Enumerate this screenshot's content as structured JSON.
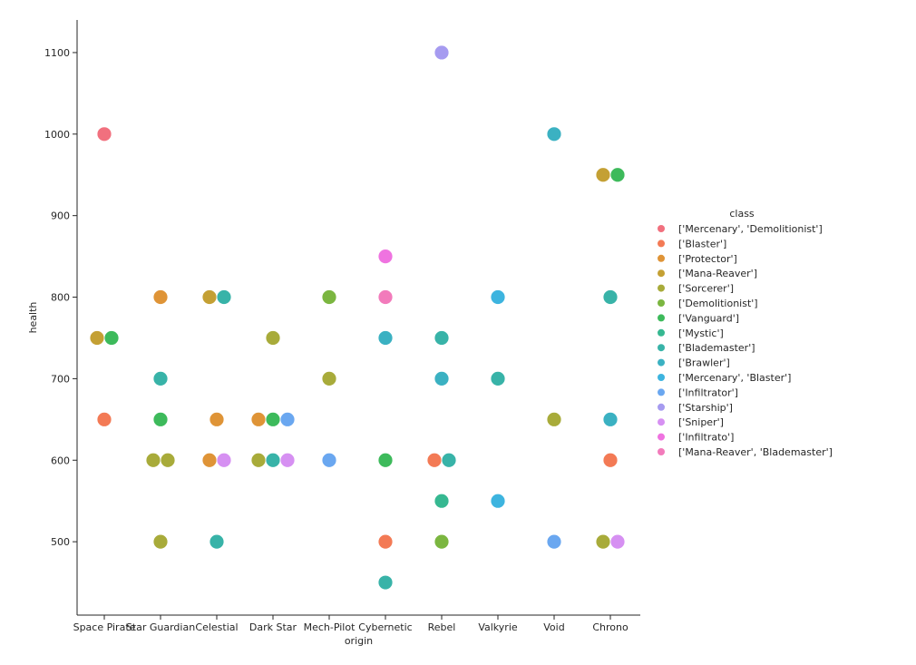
{
  "chart_data": {
    "type": "scatter",
    "title": "",
    "xlabel": "origin",
    "ylabel": "health",
    "ylim": [
      410,
      1140
    ],
    "yticks": [
      500,
      600,
      700,
      800,
      900,
      1000,
      1100
    ],
    "categories": [
      "Space Pirate",
      "Star Guardian",
      "Celestial",
      "Dark Star",
      "Mech-Pilot",
      "Cybernetic",
      "Rebel",
      "Valkyrie",
      "Void",
      "Chrono"
    ],
    "grid": false,
    "legend": {
      "title": "class",
      "placement": "right"
    },
    "series": [
      {
        "name": "['Mercenary', 'Demolitionist']",
        "color": "#f1707e",
        "points": [
          {
            "x": "Space Pirate",
            "y": 1000
          }
        ]
      },
      {
        "name": "['Blaster']",
        "color": "#f37a55",
        "points": [
          {
            "x": "Space Pirate",
            "y": 650
          },
          {
            "x": "Cybernetic",
            "y": 500
          },
          {
            "x": "Rebel",
            "y": 600
          },
          {
            "x": "Chrono",
            "y": 600
          }
        ]
      },
      {
        "name": "['Protector']",
        "color": "#df9437",
        "points": [
          {
            "x": "Star Guardian",
            "y": 800
          },
          {
            "x": "Celestial",
            "y": 650
          },
          {
            "x": "Celestial",
            "y": 600
          },
          {
            "x": "Dark Star",
            "y": 650
          }
        ]
      },
      {
        "name": "['Mana-Reaver']",
        "color": "#c4a034",
        "points": [
          {
            "x": "Space Pirate",
            "y": 750
          },
          {
            "x": "Celestial",
            "y": 800
          },
          {
            "x": "Chrono",
            "y": 950
          }
        ]
      },
      {
        "name": "['Sorcerer']",
        "color": "#a8ab3a",
        "points": [
          {
            "x": "Star Guardian",
            "y": 600
          },
          {
            "x": "Star Guardian",
            "y": 600
          },
          {
            "x": "Star Guardian",
            "y": 500
          },
          {
            "x": "Dark Star",
            "y": 750
          },
          {
            "x": "Dark Star",
            "y": 600
          },
          {
            "x": "Mech-Pilot",
            "y": 700
          },
          {
            "x": "Void",
            "y": 650
          },
          {
            "x": "Chrono",
            "y": 500
          }
        ]
      },
      {
        "name": "['Demolitionist']",
        "color": "#7bb640",
        "points": [
          {
            "x": "Mech-Pilot",
            "y": 800
          },
          {
            "x": "Rebel",
            "y": 500
          }
        ]
      },
      {
        "name": "['Vanguard']",
        "color": "#3dba5b",
        "points": [
          {
            "x": "Space Pirate",
            "y": 750
          },
          {
            "x": "Star Guardian",
            "y": 650
          },
          {
            "x": "Dark Star",
            "y": 650
          },
          {
            "x": "Cybernetic",
            "y": 600
          },
          {
            "x": "Chrono",
            "y": 950
          }
        ]
      },
      {
        "name": "['Mystic']",
        "color": "#36b891",
        "points": [
          {
            "x": "Rebel",
            "y": 550
          }
        ]
      },
      {
        "name": "['Blademaster']",
        "color": "#38b3a8",
        "points": [
          {
            "x": "Star Guardian",
            "y": 700
          },
          {
            "x": "Celestial",
            "y": 800
          },
          {
            "x": "Celestial",
            "y": 500
          },
          {
            "x": "Dark Star",
            "y": 600
          },
          {
            "x": "Cybernetic",
            "y": 450
          },
          {
            "x": "Rebel",
            "y": 750
          },
          {
            "x": "Rebel",
            "y": 600
          },
          {
            "x": "Valkyrie",
            "y": 700
          },
          {
            "x": "Chrono",
            "y": 800
          }
        ]
      },
      {
        "name": "['Brawler']",
        "color": "#3bb1c2",
        "points": [
          {
            "x": "Cybernetic",
            "y": 750
          },
          {
            "x": "Rebel",
            "y": 700
          },
          {
            "x": "Void",
            "y": 1000
          },
          {
            "x": "Chrono",
            "y": 650
          }
        ]
      },
      {
        "name": "['Mercenary', 'Blaster']",
        "color": "#3db4df",
        "points": [
          {
            "x": "Valkyrie",
            "y": 800
          },
          {
            "x": "Valkyrie",
            "y": 550
          }
        ]
      },
      {
        "name": "['Infiltrator']",
        "color": "#6aa7f0",
        "points": [
          {
            "x": "Dark Star",
            "y": 650
          },
          {
            "x": "Mech-Pilot",
            "y": 600
          },
          {
            "x": "Void",
            "y": 500
          }
        ]
      },
      {
        "name": "['Starship']",
        "color": "#a69bf0",
        "points": [
          {
            "x": "Rebel",
            "y": 1100
          }
        ]
      },
      {
        "name": "['Sniper']",
        "color": "#d690f2",
        "points": [
          {
            "x": "Celestial",
            "y": 600
          },
          {
            "x": "Dark Star",
            "y": 600
          },
          {
            "x": "Chrono",
            "y": 500
          }
        ]
      },
      {
        "name": "['Infiltrato']",
        "color": "#ef73e0",
        "points": [
          {
            "x": "Cybernetic",
            "y": 850
          }
        ]
      },
      {
        "name": "['Mana-Reaver', 'Blademaster']",
        "color": "#f27bbb",
        "points": [
          {
            "x": "Cybernetic",
            "y": 800
          }
        ]
      }
    ]
  }
}
